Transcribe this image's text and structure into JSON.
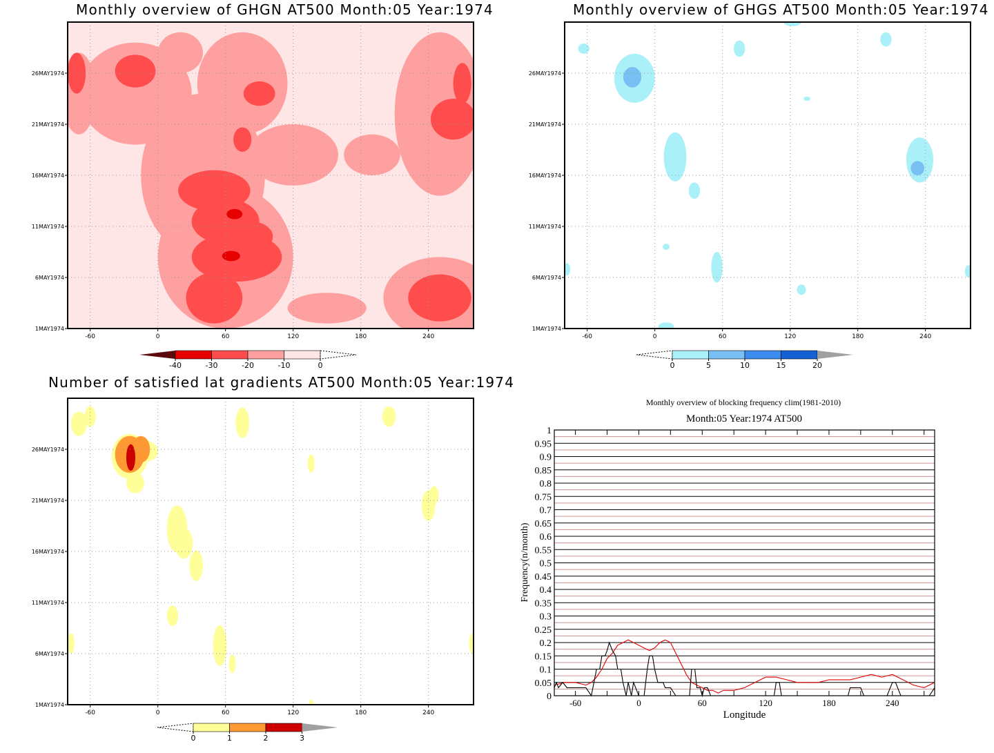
{
  "chart_data": [
    {
      "type": "heatmap",
      "title": "Monthly overview of GHGN AT500 Month:05 Year:1974",
      "x_ticks": [
        "-60",
        "0",
        "60",
        "120",
        "180",
        "240"
      ],
      "y_ticks": [
        "1MAY1974",
        "6MAY1974",
        "11MAY1974",
        "16MAY1974",
        "21MAY1974",
        "26MAY1974"
      ],
      "xlim": [
        -80,
        280
      ],
      "colorbar": {
        "labels": [
          "-40",
          "-30",
          "-20",
          "-10",
          "0"
        ],
        "colors": [
          "#5a0a0a",
          "#e60000",
          "#ff4c4c",
          "#ffa0a0",
          "#ffe6e6"
        ]
      },
      "blobs": [
        {
          "level": 3,
          "lon": -20,
          "day": 26.2,
          "rlon": 18,
          "rday": 1.6
        },
        {
          "level": 3,
          "lon": 90,
          "day": 24.0,
          "rlon": 14,
          "rday": 1.2
        },
        {
          "level": 3,
          "lon": -72,
          "day": 26,
          "rlon": 8,
          "rday": 2
        },
        {
          "level": 3,
          "lon": 262,
          "day": 21.5,
          "rlon": 20,
          "rday": 2
        },
        {
          "level": 3,
          "lon": 270,
          "day": 25,
          "rlon": 8,
          "rday": 2
        },
        {
          "level": 3,
          "lon": 50,
          "day": 14.5,
          "rlon": 32,
          "rday": 2
        },
        {
          "level": 3,
          "lon": 60,
          "day": 11.5,
          "rlon": 30,
          "rday": 2.2
        },
        {
          "level": 3,
          "lon": 70,
          "day": 8,
          "rlon": 40,
          "rday": 2.4
        },
        {
          "level": 3,
          "lon": 50,
          "day": 4,
          "rlon": 25,
          "rday": 2.5
        },
        {
          "level": 3,
          "lon": 250,
          "day": 4,
          "rlon": 28,
          "rday": 2.3
        },
        {
          "level": 3,
          "lon": 82,
          "day": 10,
          "rlon": 20,
          "rday": 1.5
        },
        {
          "level": 3,
          "lon": 75,
          "day": 19.5,
          "rlon": 8,
          "rday": 1.2
        },
        {
          "level": 4,
          "lon": 68,
          "day": 12.2,
          "rlon": 7,
          "rday": 0.5
        },
        {
          "level": 4,
          "lon": 65,
          "day": 8.1,
          "rlon": 8,
          "rday": 0.5
        }
      ],
      "background_level": 1,
      "light_regions": [
        {
          "lon": -45,
          "day": 20,
          "rlon": 25,
          "rday": 2.5
        },
        {
          "lon": -70,
          "day": 16,
          "rlon": 10,
          "rday": 4
        },
        {
          "lon": -65,
          "day": 8,
          "rlon": 15,
          "rday": 4
        },
        {
          "lon": 160,
          "day": 8,
          "rlon": 40,
          "rday": 3
        },
        {
          "lon": 170,
          "day": 22,
          "rlon": 35,
          "rday": 4
        },
        {
          "lon": 110,
          "day": 26,
          "rlon": 30,
          "rday": 3
        },
        {
          "lon": 180,
          "day": 14,
          "rlon": 30,
          "rday": 2.5
        },
        {
          "lon": -20,
          "day": 2,
          "rlon": 40,
          "rday": 1.5
        },
        {
          "lon": 220,
          "day": 13,
          "rlon": 40,
          "rday": 3
        },
        {
          "lon": -40,
          "day": 4,
          "rlon": 25,
          "rday": 2
        },
        {
          "lon": 120,
          "day": 14,
          "rlon": 35,
          "rday": 2
        },
        {
          "lon": 260,
          "day": 29,
          "rlon": 40,
          "rday": 2
        }
      ],
      "mid_regions": [
        {
          "lon": 40,
          "day": 16,
          "rlon": 55,
          "rday": 8
        },
        {
          "lon": 60,
          "day": 8,
          "rlon": 60,
          "rday": 7
        },
        {
          "lon": 75,
          "day": 25,
          "rlon": 40,
          "rday": 5
        },
        {
          "lon": -20,
          "day": 24,
          "rlon": 50,
          "rday": 5
        },
        {
          "lon": 250,
          "day": 22,
          "rlon": 40,
          "rday": 8
        },
        {
          "lon": 250,
          "day": 4,
          "rlon": 50,
          "rday": 4
        },
        {
          "lon": -70,
          "day": 24,
          "rlon": 15,
          "rday": 4
        },
        {
          "lon": 120,
          "day": 18,
          "rlon": 40,
          "rday": 3
        },
        {
          "lon": 150,
          "day": 3,
          "rlon": 35,
          "rday": 1.5
        },
        {
          "lon": 190,
          "day": 18,
          "rlon": 25,
          "rday": 2
        },
        {
          "lon": 20,
          "day": 28,
          "rlon": 20,
          "rday": 2
        }
      ]
    },
    {
      "type": "heatmap",
      "title": "Monthly overview of GHGS AT500 Month:05 Year:1974",
      "x_ticks": [
        "-60",
        "0",
        "60",
        "120",
        "180",
        "240"
      ],
      "y_ticks": [
        "1MAY1974",
        "6MAY1974",
        "11MAY1974",
        "16MAY1974",
        "21MAY1974",
        "26MAY1974"
      ],
      "xlim": [
        -80,
        280
      ],
      "colorbar": {
        "labels": [
          "0",
          "5",
          "10",
          "15",
          "20"
        ],
        "colors": [
          "#aaf0f8",
          "#78c0f4",
          "#3c8cf0",
          "#1460d4",
          "#a0a0a0"
        ]
      },
      "blobs": [
        {
          "level": 1,
          "lon": -18,
          "day": 25.5,
          "rlon": 18,
          "rday": 2.4
        },
        {
          "level": 2,
          "lon": -20,
          "day": 25.6,
          "rlon": 8,
          "rday": 1
        },
        {
          "level": 1,
          "lon": 18,
          "day": 17.8,
          "rlon": 10,
          "rday": 2.4
        },
        {
          "level": 1,
          "lon": 35,
          "day": 14.5,
          "rlon": 5,
          "rday": 0.8
        },
        {
          "level": 1,
          "lon": 235,
          "day": 17.5,
          "rlon": 12,
          "rday": 2.2
        },
        {
          "level": 2,
          "lon": 233,
          "day": 16.7,
          "rlon": 6,
          "rday": 0.7
        },
        {
          "level": 1,
          "lon": 55,
          "day": 7,
          "rlon": 5,
          "rday": 1.5
        },
        {
          "level": 1,
          "lon": 75,
          "day": 28.4,
          "rlon": 5,
          "rday": 0.8
        },
        {
          "level": 1,
          "lon": 205,
          "day": 29.3,
          "rlon": 5,
          "rday": 0.7
        },
        {
          "level": 1,
          "lon": -63,
          "day": 28.4,
          "rlon": 5,
          "rday": 0.5
        },
        {
          "level": 1,
          "lon": 130,
          "day": 4.8,
          "rlon": 4,
          "rday": 0.5
        },
        {
          "level": 1,
          "lon": 10,
          "day": 1.2,
          "rlon": 7,
          "rday": 0.4
        },
        {
          "level": 1,
          "lon": 10,
          "day": 9,
          "rlon": 3,
          "rday": 0.3
        },
        {
          "level": 1,
          "lon": -78,
          "day": 6.8,
          "rlon": 3,
          "rday": 0.6
        },
        {
          "level": 1,
          "lon": 278,
          "day": 6.6,
          "rlon": 3,
          "rday": 0.6
        },
        {
          "level": 1,
          "lon": 122,
          "day": 31,
          "rlon": 8,
          "rday": 0.4
        },
        {
          "level": 1,
          "lon": 135,
          "day": 23.5,
          "rlon": 3,
          "rday": 0.2
        }
      ]
    },
    {
      "type": "heatmap",
      "title": "Number of satisfied lat gradients AT500 Month:05 Year:1974",
      "x_ticks": [
        "-60",
        "0",
        "60",
        "120",
        "180",
        "240"
      ],
      "y_ticks": [
        "1MAY1974",
        "6MAY1974",
        "11MAY1974",
        "16MAY1974",
        "21MAY1974",
        "26MAY1974"
      ],
      "xlim": [
        -80,
        280
      ],
      "colorbar": {
        "labels": [
          "0",
          "1",
          "2",
          "3"
        ],
        "colors": [
          "#ffff99",
          "#ff9933",
          "#cc0000",
          "#a0a0a0"
        ]
      },
      "blobs": [
        {
          "level": 1,
          "lon": -25,
          "day": 25.3,
          "rlon": 16,
          "rday": 2.2
        },
        {
          "level": 1,
          "lon": -10,
          "day": 25.8,
          "rlon": 10,
          "rday": 1
        },
        {
          "level": 1,
          "lon": -20,
          "day": 22.7,
          "rlon": 8,
          "rday": 1
        },
        {
          "level": 1,
          "lon": -70,
          "day": 28.5,
          "rlon": 7,
          "rday": 1.2
        },
        {
          "level": 1,
          "lon": -60,
          "day": 29.2,
          "rlon": 5,
          "rday": 1
        },
        {
          "level": 1,
          "lon": 75,
          "day": 28.6,
          "rlon": 6,
          "rday": 1.5
        },
        {
          "level": 1,
          "lon": 205,
          "day": 29.2,
          "rlon": 6,
          "rday": 1
        },
        {
          "level": 1,
          "lon": 136,
          "day": 24.6,
          "rlon": 3,
          "rday": 0.9
        },
        {
          "level": 1,
          "lon": 17,
          "day": 18.2,
          "rlon": 9,
          "rday": 2.3
        },
        {
          "level": 1,
          "lon": 23,
          "day": 16.8,
          "rlon": 8,
          "rday": 1.5
        },
        {
          "level": 1,
          "lon": 34,
          "day": 14.6,
          "rlon": 6,
          "rday": 1.5
        },
        {
          "level": 1,
          "lon": 13,
          "day": 9.7,
          "rlon": 5,
          "rday": 1
        },
        {
          "level": 1,
          "lon": 55,
          "day": 6.8,
          "rlon": 6,
          "rday": 2
        },
        {
          "level": 1,
          "lon": 66,
          "day": 5,
          "rlon": 3,
          "rday": 0.9
        },
        {
          "level": 1,
          "lon": 240,
          "day": 20.5,
          "rlon": 6,
          "rday": 1.5
        },
        {
          "level": 1,
          "lon": 245,
          "day": 21.5,
          "rlon": 4,
          "rday": 0.9
        },
        {
          "level": 1,
          "lon": -77,
          "day": 7,
          "rlon": 3,
          "rday": 1
        },
        {
          "level": 1,
          "lon": 279,
          "day": 7,
          "rlon": 3,
          "rday": 1
        },
        {
          "level": 1,
          "lon": 136,
          "day": 1.1,
          "rlon": 2,
          "rday": 0.4
        },
        {
          "level": 2,
          "lon": -25,
          "day": 25.5,
          "rlon": 13,
          "rday": 1.8
        },
        {
          "level": 2,
          "lon": -15,
          "day": 26,
          "rlon": 8,
          "rday": 1.3
        },
        {
          "level": 3,
          "lon": -24,
          "day": 25.2,
          "rlon": 4,
          "rday": 1.3
        }
      ]
    },
    {
      "type": "line",
      "title": "Monthly overview of blocking frequency clim(1981-2010)",
      "subtitle": "Month:05 Year:1974  AT500",
      "xlabel": "Longitude",
      "ylabel": "Frequency(n/month)",
      "xlim": [
        -80,
        280
      ],
      "ylim": [
        0,
        1
      ],
      "x_ticks": [
        "-60",
        "0",
        "60",
        "120",
        "180",
        "240"
      ],
      "y_ticks": [
        "0",
        "0.05",
        "0.1",
        "0.15",
        "0.2",
        "0.25",
        "0.3",
        "0.35",
        "0.4",
        "0.45",
        "0.5",
        "0.55",
        "0.6",
        "0.65",
        "0.7",
        "0.75",
        "0.8",
        "0.85",
        "0.9",
        "0.95",
        "1"
      ],
      "series": [
        {
          "color": "#e00000",
          "x": [
            -80,
            -70,
            -60,
            -50,
            -45,
            -40,
            -35,
            -30,
            -25,
            -20,
            -15,
            -10,
            -5,
            0,
            5,
            10,
            15,
            20,
            25,
            30,
            35,
            40,
            45,
            50,
            55,
            60,
            65,
            70,
            75,
            80,
            90,
            100,
            110,
            120,
            130,
            140,
            150,
            160,
            170,
            180,
            190,
            200,
            210,
            220,
            230,
            240,
            250,
            260,
            270,
            280
          ],
          "y": [
            0.04,
            0.05,
            0.05,
            0.04,
            0.05,
            0.07,
            0.1,
            0.14,
            0.16,
            0.19,
            0.2,
            0.21,
            0.2,
            0.19,
            0.18,
            0.17,
            0.18,
            0.2,
            0.21,
            0.2,
            0.16,
            0.12,
            0.08,
            0.05,
            0.04,
            0.03,
            0.02,
            0.02,
            0.01,
            0.02,
            0.02,
            0.03,
            0.05,
            0.07,
            0.07,
            0.06,
            0.05,
            0.05,
            0.05,
            0.06,
            0.06,
            0.06,
            0.07,
            0.08,
            0.07,
            0.08,
            0.06,
            0.04,
            0.03,
            0.05
          ]
        },
        {
          "color": "#000000",
          "x": [
            -80,
            -78,
            -76,
            -72,
            -68,
            -60,
            -55,
            -50,
            -45,
            -42,
            -40,
            -37,
            -35,
            -32,
            -30,
            -28,
            -25,
            -22,
            -20,
            -17,
            -15,
            -12,
            -10,
            -7,
            -5,
            0,
            5,
            8,
            10,
            13,
            15,
            18,
            20,
            23,
            25,
            30,
            35,
            40,
            45,
            48,
            50,
            53,
            55,
            58,
            60,
            62,
            65,
            68,
            70,
            75,
            80,
            125,
            128,
            130,
            133,
            135,
            138,
            140,
            180,
            195,
            198,
            200,
            205,
            210,
            213,
            215,
            220,
            225,
            230,
            235,
            238,
            240,
            243,
            245,
            248,
            250,
            270,
            275,
            280
          ],
          "y": [
            0.03,
            0.05,
            0.03,
            0.05,
            0.03,
            0.03,
            0.03,
            0.03,
            0.0,
            0.06,
            0.1,
            0.1,
            0.15,
            0.15,
            0.17,
            0.2,
            0.17,
            0.15,
            0.1,
            0.1,
            0.05,
            0.0,
            0.05,
            0.0,
            0.05,
            0.0,
            0.0,
            0.1,
            0.15,
            0.15,
            0.1,
            0.05,
            0.05,
            0.05,
            0.03,
            0.03,
            0.0,
            0.0,
            0.0,
            0.0,
            0.1,
            0.1,
            0.03,
            0.03,
            0.0,
            0.03,
            0.03,
            0.0,
            0.0,
            0.0,
            0.0,
            0.0,
            0.0,
            0.05,
            0.05,
            0.0,
            0.0,
            0.0,
            0.0,
            0.0,
            0.0,
            0.03,
            0.03,
            0.03,
            0.0,
            0.0,
            0.0,
            0.0,
            0.0,
            0.0,
            0.03,
            0.05,
            0.05,
            0.03,
            0.0,
            0.0,
            0.0,
            0.0,
            0.03
          ]
        }
      ]
    }
  ]
}
